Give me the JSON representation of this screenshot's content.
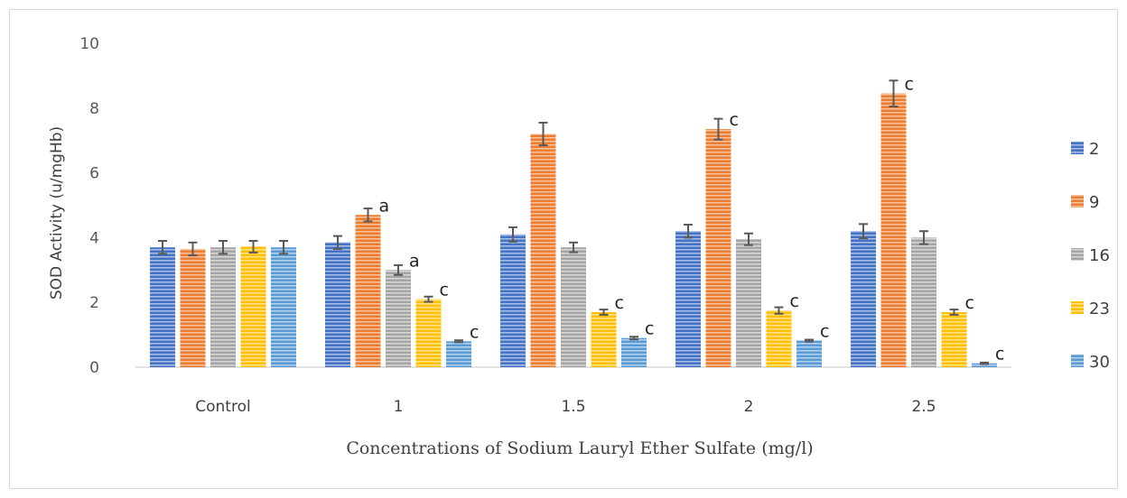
{
  "chart_data": {
    "type": "bar",
    "title": "",
    "xlabel": "Concentrations of Sodium Lauryl Ether Sulfate  (mg/l)",
    "ylabel": "SOD Activity (u/mgHb)",
    "ylim": [
      0,
      10
    ],
    "yticks": [
      "0",
      "2",
      "4",
      "6",
      "8",
      "10"
    ],
    "grid": false,
    "legend_position": "right",
    "categories": [
      "Control",
      "1",
      "1.5",
      "2",
      "2.5"
    ],
    "series": [
      {
        "name": "2",
        "color": "#4472C4",
        "values": [
          3.7,
          3.85,
          4.1,
          4.2,
          4.2
        ],
        "errors": [
          0.2,
          0.2,
          0.22,
          0.2,
          0.22
        ],
        "labels": [
          "",
          "",
          "",
          "",
          ""
        ]
      },
      {
        "name": "9",
        "color": "#ED7D31",
        "values": [
          3.65,
          4.7,
          7.2,
          7.35,
          8.45
        ],
        "errors": [
          0.2,
          0.2,
          0.35,
          0.32,
          0.4
        ],
        "labels": [
          "",
          "a",
          "",
          "c",
          "c"
        ]
      },
      {
        "name": "16",
        "color": "#A5A5A5",
        "values": [
          3.7,
          3.0,
          3.7,
          3.95,
          4.0
        ],
        "errors": [
          0.2,
          0.15,
          0.15,
          0.18,
          0.2
        ],
        "labels": [
          "",
          "a",
          "",
          "",
          ""
        ]
      },
      {
        "name": "23",
        "color": "#FFC000",
        "values": [
          3.72,
          2.1,
          1.7,
          1.75,
          1.7
        ],
        "errors": [
          0.18,
          0.08,
          0.08,
          0.1,
          0.08
        ],
        "labels": [
          "",
          "c",
          "c",
          "c",
          "c"
        ]
      },
      {
        "name": "30",
        "color": "#5B9BD5",
        "values": [
          3.7,
          0.8,
          0.9,
          0.82,
          0.12
        ],
        "errors": [
          0.2,
          0.03,
          0.04,
          0.03,
          0.02
        ],
        "labels": [
          "",
          "c",
          "c",
          "c",
          "c"
        ]
      }
    ]
  }
}
